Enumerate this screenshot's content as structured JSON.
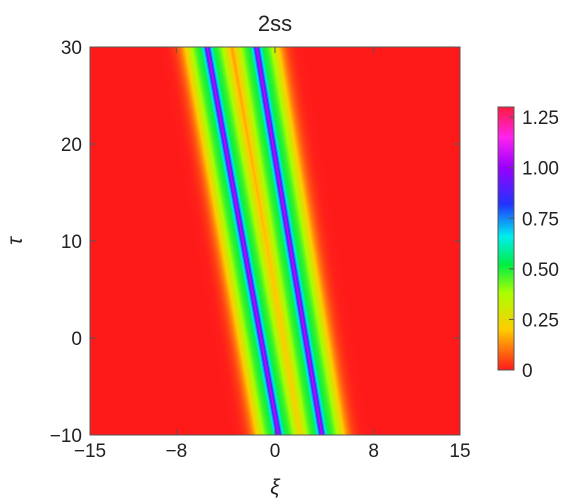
{
  "chart_data": {
    "type": "heatmap",
    "title": "2ss",
    "xlabel": "ξ",
    "ylabel": "τ",
    "xlim": [
      -15,
      15
    ],
    "ylim": [
      -10,
      30
    ],
    "x_ticks": [
      {
        "value": -15,
        "label": "−15"
      },
      {
        "value": -8,
        "label": "−8"
      },
      {
        "value": 0,
        "label": "0"
      },
      {
        "value": 8,
        "label": "8"
      },
      {
        "value": 15,
        "label": "15"
      }
    ],
    "y_ticks": [
      {
        "value": -10,
        "label": "−10"
      },
      {
        "value": 0,
        "label": "0"
      },
      {
        "value": 10,
        "label": "10"
      },
      {
        "value": 20,
        "label": "20"
      },
      {
        "value": 30,
        "label": "30"
      }
    ],
    "colorbar": {
      "range": [
        0,
        1.3
      ],
      "ticks": [
        {
          "value": 0,
          "label": "0"
        },
        {
          "value": 0.25,
          "label": "0.25"
        },
        {
          "value": 0.5,
          "label": "0.50"
        },
        {
          "value": 0.75,
          "label": "0.75"
        },
        {
          "value": 1.0,
          "label": "1.00"
        },
        {
          "value": 1.25,
          "label": "1.25"
        }
      ],
      "colors": [
        {
          "value": 0,
          "color": "#ff1a1a"
        },
        {
          "value": 0.2,
          "color": "#ffcc00"
        },
        {
          "value": 0.38,
          "color": "#aaff00"
        },
        {
          "value": 0.52,
          "color": "#00ee44"
        },
        {
          "value": 0.66,
          "color": "#00eeee"
        },
        {
          "value": 0.82,
          "color": "#2233ff"
        },
        {
          "value": 1.0,
          "color": "#9900ff"
        },
        {
          "value": 1.15,
          "color": "#ff22ee"
        },
        {
          "value": 1.3,
          "color": "#ff1a40"
        }
      ],
      "placement": "right"
    },
    "background_value": 0,
    "series": [
      {
        "tau": [
          -10,
          30
        ],
        "xi": [
          0.3,
          -5.5
        ],
        "peak": 1.0
      },
      {
        "tau": [
          -10,
          30
        ],
        "xi": [
          3.8,
          -1.5
        ],
        "peak": 1.0
      }
    ]
  }
}
